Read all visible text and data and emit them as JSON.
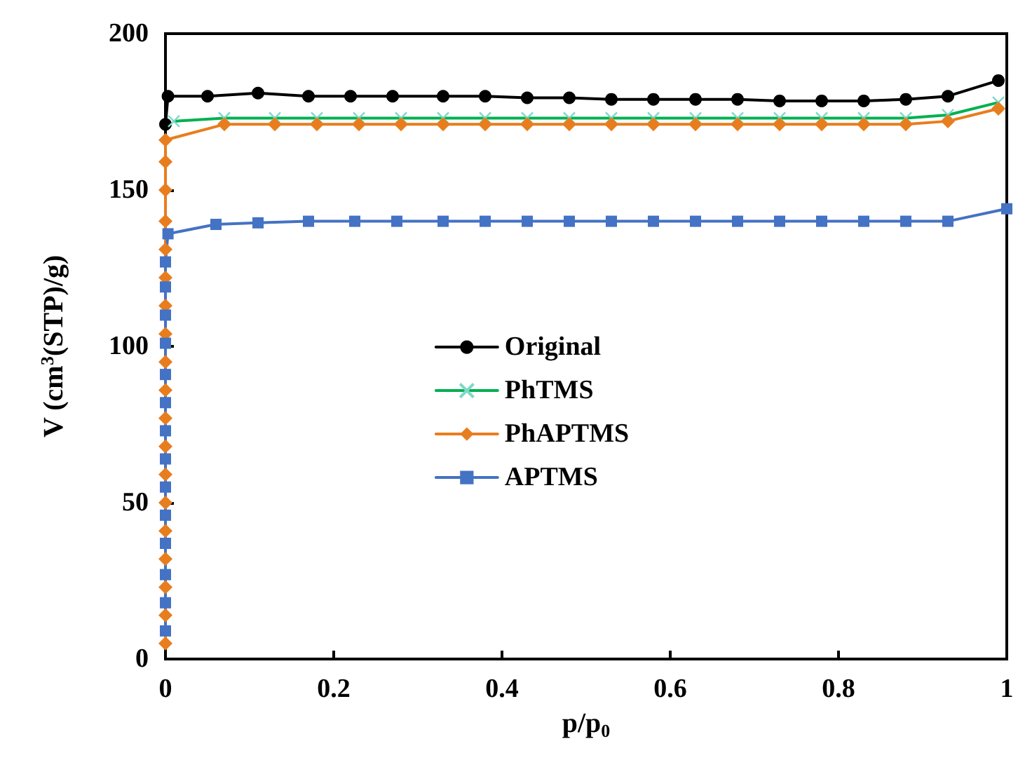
{
  "chart_data": {
    "type": "line",
    "xlabel": "p/p$_{0}$",
    "ylabel": "V (cm$^{3}$(STP)/g)",
    "xlim": [
      0,
      1
    ],
    "xticks": [
      0,
      0.2,
      0.4,
      0.6,
      0.8,
      1
    ],
    "ylim": [
      0,
      200
    ],
    "yticks": [
      0,
      50,
      100,
      150,
      200
    ],
    "grid": false,
    "legend": "center",
    "line_style": "solid",
    "series": [
      {
        "name": "Original",
        "color": "#000000",
        "marker": "circle",
        "x": [
          0,
          0.003,
          0.05,
          0.11,
          0.17,
          0.22,
          0.27,
          0.33,
          0.38,
          0.43,
          0.48,
          0.53,
          0.58,
          0.63,
          0.68,
          0.73,
          0.78,
          0.83,
          0.88,
          0.93,
          0.99
        ],
        "values": [
          171,
          180,
          180,
          181,
          180,
          180,
          180,
          180,
          180,
          179.5,
          179.5,
          179,
          179,
          179,
          179,
          178.5,
          178.5,
          178.5,
          179,
          180,
          185
        ]
      },
      {
        "name": "PhTMS",
        "color": "#00b050",
        "marker": "cross",
        "x": [
          0.01,
          0.07,
          0.13,
          0.18,
          0.23,
          0.28,
          0.33,
          0.38,
          0.43,
          0.48,
          0.53,
          0.58,
          0.63,
          0.68,
          0.73,
          0.78,
          0.83,
          0.88,
          0.93,
          0.99
        ],
        "values": [
          172,
          173,
          173,
          173,
          173,
          173,
          173,
          173,
          173,
          173,
          173,
          173,
          173,
          173,
          173,
          173,
          173,
          173,
          174,
          178
        ]
      },
      {
        "name": "PhAPTMS",
        "color": "#e87d1e",
        "marker": "diamond",
        "x": [
          0,
          0,
          0,
          0,
          0,
          0,
          0,
          0,
          0,
          0,
          0,
          0,
          0,
          0,
          0,
          0,
          0,
          0,
          0,
          0.07,
          0.13,
          0.18,
          0.23,
          0.28,
          0.33,
          0.38,
          0.43,
          0.48,
          0.53,
          0.58,
          0.63,
          0.68,
          0.73,
          0.78,
          0.83,
          0.88,
          0.93,
          0.99
        ],
        "values": [
          5,
          14,
          23,
          32,
          41,
          50,
          59,
          68,
          77,
          86,
          95,
          104,
          113,
          122,
          131,
          140,
          150,
          159,
          166,
          171,
          171,
          171,
          171,
          171,
          171,
          171,
          171,
          171,
          171,
          171,
          171,
          171,
          171,
          171,
          171,
          171,
          172,
          176
        ]
      },
      {
        "name": "APTMS",
        "color": "#4472c4",
        "marker": "square",
        "x": [
          0,
          0,
          0,
          0,
          0,
          0,
          0,
          0,
          0,
          0,
          0,
          0,
          0,
          0,
          0.003,
          0.06,
          0.11,
          0.17,
          0.225,
          0.275,
          0.33,
          0.38,
          0.43,
          0.48,
          0.53,
          0.58,
          0.63,
          0.68,
          0.73,
          0.78,
          0.83,
          0.88,
          0.93,
          1
        ],
        "values": [
          9,
          18,
          27,
          37,
          46,
          55,
          64,
          73,
          82,
          91,
          101,
          110,
          119,
          127,
          136,
          139,
          139.5,
          140,
          140,
          140,
          140,
          140,
          140,
          140,
          140,
          140,
          140,
          140,
          140,
          140,
          140,
          140,
          140,
          144
        ]
      }
    ]
  }
}
